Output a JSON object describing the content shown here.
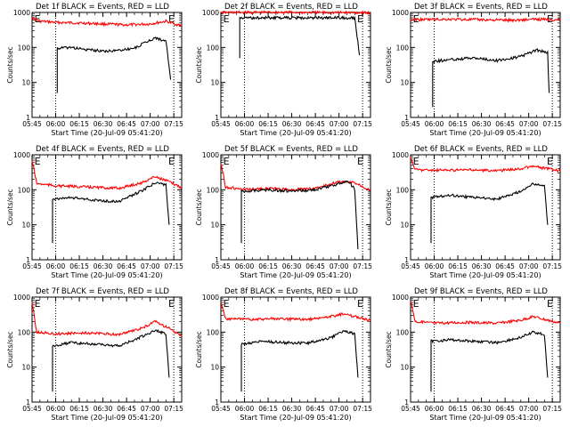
{
  "chart_data": [
    {
      "type": "line",
      "title": "Det 1f BLACK = Events, RED = LLD",
      "ylabel": "Counts/sec",
      "xlabel": "Start Time (20-Jul-09 05:41:20)",
      "y_scale": "log",
      "ylim": [
        1,
        1000
      ],
      "y_tick_labels": [
        "1",
        "10",
        "100",
        "1000"
      ],
      "x_tick_labels": [
        "05:45",
        "06:00",
        "06:15",
        "06:30",
        "06:45",
        "07:00",
        "07:15"
      ],
      "xlim_minutes": [
        -15,
        80
      ],
      "vlines_minutes": [
        0,
        75
      ],
      "markers": [
        "E",
        "E"
      ],
      "series": [
        {
          "color": "#ff0000",
          "points": [
            [
              -15,
              700
            ],
            [
              -10,
              560
            ],
            [
              0,
              520
            ],
            [
              15,
              500
            ],
            [
              30,
              470
            ],
            [
              45,
              440
            ],
            [
              60,
              470
            ],
            [
              70,
              560
            ],
            [
              80,
              410
            ]
          ]
        },
        {
          "color": "#000000",
          "points": [
            [
              1,
              5
            ],
            [
              1,
              95
            ],
            [
              10,
              100
            ],
            [
              20,
              85
            ],
            [
              35,
              78
            ],
            [
              50,
              95
            ],
            [
              63,
              190
            ],
            [
              70,
              150
            ],
            [
              73,
              12
            ]
          ]
        }
      ]
    },
    {
      "type": "line",
      "title": "Det 2f BLACK = Events, RED = LLD",
      "ylabel": "Counts/sec",
      "xlabel": "Start Time (20-Jul-09 05:41:20)",
      "y_scale": "log",
      "ylim": [
        1,
        1000
      ],
      "y_tick_labels": [
        "1",
        "10",
        "100",
        "1000"
      ],
      "x_tick_labels": [
        "05:45",
        "06:00",
        "06:15",
        "06:30",
        "06:45",
        "07:00",
        "07:15"
      ],
      "xlim_minutes": [
        -15,
        80
      ],
      "vlines_minutes": [
        0,
        75
      ],
      "markers": [
        "E",
        "E"
      ],
      "series": [
        {
          "color": "#ff0000",
          "points": [
            [
              -15,
              1000
            ],
            [
              0,
              1000
            ],
            [
              20,
              1010
            ],
            [
              40,
              1000
            ],
            [
              60,
              990
            ],
            [
              75,
              1000
            ],
            [
              80,
              950
            ]
          ]
        },
        {
          "color": "#000000",
          "points": [
            [
              -3,
              50
            ],
            [
              -3,
              700
            ],
            [
              10,
              700
            ],
            [
              30,
              700
            ],
            [
              50,
              700
            ],
            [
              70,
              700
            ],
            [
              73,
              60
            ]
          ]
        }
      ]
    },
    {
      "type": "line",
      "title": "Det 3f BLACK = Events, RED = LLD",
      "ylabel": "Counts/sec",
      "xlabel": "Start Time (20-Jul-09 05:41:20)",
      "y_scale": "log",
      "ylim": [
        1,
        1000
      ],
      "y_tick_labels": [
        "1",
        "10",
        "100",
        "1000"
      ],
      "x_tick_labels": [
        "05:45",
        "06:00",
        "06:15",
        "06:30",
        "06:45",
        "07:00",
        "07:15"
      ],
      "xlim_minutes": [
        -15,
        80
      ],
      "vlines_minutes": [
        0,
        75
      ],
      "markers": [
        "E",
        "E"
      ],
      "series": [
        {
          "color": "#ff0000",
          "points": [
            [
              -15,
              620
            ],
            [
              10,
              640
            ],
            [
              30,
              620
            ],
            [
              50,
              600
            ],
            [
              65,
              640
            ],
            [
              80,
              620
            ]
          ]
        },
        {
          "color": "#000000",
          "points": [
            [
              -1,
              2
            ],
            [
              -1,
              40
            ],
            [
              10,
              45
            ],
            [
              25,
              50
            ],
            [
              40,
              42
            ],
            [
              55,
              55
            ],
            [
              65,
              85
            ],
            [
              72,
              70
            ],
            [
              73,
              5
            ]
          ]
        }
      ]
    },
    {
      "type": "line",
      "title": "Det 4f BLACK = Events, RED = LLD",
      "ylabel": "Counts/sec",
      "xlabel": "Start Time (20-Jul-09 05:41:20)",
      "y_scale": "log",
      "ylim": [
        1,
        1000
      ],
      "y_tick_labels": [
        "1",
        "10",
        "100",
        "1000"
      ],
      "x_tick_labels": [
        "05:45",
        "06:00",
        "06:15",
        "06:30",
        "06:45",
        "07:00",
        "07:15"
      ],
      "xlim_minutes": [
        -15,
        80
      ],
      "vlines_minutes": [
        0,
        75
      ],
      "markers": [
        "E",
        "E"
      ],
      "series": [
        {
          "color": "#ff0000",
          "points": [
            [
              -15,
              700
            ],
            [
              -12,
              150
            ],
            [
              0,
              130
            ],
            [
              20,
              120
            ],
            [
              40,
              110
            ],
            [
              55,
              160
            ],
            [
              63,
              240
            ],
            [
              72,
              170
            ],
            [
              80,
              115
            ]
          ]
        },
        {
          "color": "#000000",
          "points": [
            [
              -2,
              3
            ],
            [
              -2,
              55
            ],
            [
              10,
              60
            ],
            [
              25,
              50
            ],
            [
              40,
              45
            ],
            [
              55,
              95
            ],
            [
              63,
              160
            ],
            [
              70,
              140
            ],
            [
              72,
              10
            ]
          ]
        }
      ]
    },
    {
      "type": "line",
      "title": "Det 5f BLACK = Events, RED = LLD",
      "ylabel": "Counts/sec",
      "xlabel": "Start Time (20-Jul-09 05:41:20)",
      "y_scale": "log",
      "ylim": [
        1,
        1000
      ],
      "y_tick_labels": [
        "1",
        "10",
        "100",
        "1000"
      ],
      "x_tick_labels": [
        "05:45",
        "06:00",
        "06:15",
        "06:30",
        "06:45",
        "07:00",
        "07:15"
      ],
      "xlim_minutes": [
        -15,
        80
      ],
      "vlines_minutes": [
        0,
        75
      ],
      "markers": [
        "E",
        "E"
      ],
      "series": [
        {
          "color": "#ff0000",
          "points": [
            [
              -15,
              600
            ],
            [
              -12,
              120
            ],
            [
              0,
              100
            ],
            [
              15,
              110
            ],
            [
              30,
              100
            ],
            [
              45,
              110
            ],
            [
              60,
              170
            ],
            [
              70,
              160
            ],
            [
              80,
              100
            ]
          ]
        },
        {
          "color": "#000000",
          "points": [
            [
              -2,
              3
            ],
            [
              -2,
              90
            ],
            [
              15,
              100
            ],
            [
              30,
              90
            ],
            [
              45,
              100
            ],
            [
              60,
              150
            ],
            [
              66,
              180
            ],
            [
              70,
              100
            ],
            [
              72,
              2
            ]
          ]
        }
      ]
    },
    {
      "type": "line",
      "title": "Det 6f BLACK = Events, RED = LLD",
      "ylabel": "Counts/sec",
      "xlabel": "Start Time (20-Jul-09 05:41:20)",
      "y_scale": "log",
      "ylim": [
        1,
        1000
      ],
      "y_tick_labels": [
        "1",
        "10",
        "100",
        "1000"
      ],
      "x_tick_labels": [
        "05:45",
        "06:00",
        "06:15",
        "06:30",
        "06:45",
        "07:00",
        "07:15"
      ],
      "xlim_minutes": [
        -15,
        80
      ],
      "vlines_minutes": [
        0,
        75
      ],
      "markers": [
        "E",
        "E"
      ],
      "series": [
        {
          "color": "#ff0000",
          "points": [
            [
              -15,
              800
            ],
            [
              -12,
              380
            ],
            [
              0,
              360
            ],
            [
              20,
              370
            ],
            [
              40,
              350
            ],
            [
              55,
              400
            ],
            [
              63,
              470
            ],
            [
              72,
              400
            ],
            [
              80,
              340
            ]
          ]
        },
        {
          "color": "#000000",
          "points": [
            [
              -2,
              3
            ],
            [
              -2,
              60
            ],
            [
              10,
              70
            ],
            [
              25,
              60
            ],
            [
              40,
              55
            ],
            [
              55,
              90
            ],
            [
              63,
              150
            ],
            [
              70,
              130
            ],
            [
              72,
              10
            ]
          ]
        }
      ]
    },
    {
      "type": "line",
      "title": "Det 7f BLACK = Events, RED = LLD",
      "ylabel": "Counts/sec",
      "xlabel": "Start Time (20-Jul-09 05:41:20)",
      "y_scale": "log",
      "ylim": [
        1,
        1000
      ],
      "y_tick_labels": [
        "1",
        "10",
        "100",
        "1000"
      ],
      "x_tick_labels": [
        "05:45",
        "06:00",
        "06:15",
        "06:30",
        "06:45",
        "07:00",
        "07:15"
      ],
      "xlim_minutes": [
        -15,
        80
      ],
      "vlines_minutes": [
        0,
        75
      ],
      "markers": [
        "E",
        "E"
      ],
      "series": [
        {
          "color": "#ff0000",
          "points": [
            [
              -15,
              700
            ],
            [
              -12,
              100
            ],
            [
              0,
              90
            ],
            [
              20,
              95
            ],
            [
              40,
              85
            ],
            [
              55,
              130
            ],
            [
              63,
              200
            ],
            [
              72,
              130
            ],
            [
              80,
              75
            ]
          ]
        },
        {
          "color": "#000000",
          "points": [
            [
              -2,
              2
            ],
            [
              -2,
              40
            ],
            [
              10,
              50
            ],
            [
              25,
              45
            ],
            [
              40,
              40
            ],
            [
              55,
              75
            ],
            [
              63,
              110
            ],
            [
              70,
              90
            ],
            [
              72,
              5
            ]
          ]
        }
      ]
    },
    {
      "type": "line",
      "title": "Det 8f BLACK = Events, RED = LLD",
      "ylabel": "Counts/sec",
      "xlabel": "Start Time (20-Jul-09 05:41:20)",
      "y_scale": "log",
      "ylim": [
        1,
        1000
      ],
      "y_tick_labels": [
        "1",
        "10",
        "100",
        "1000"
      ],
      "x_tick_labels": [
        "05:45",
        "06:00",
        "06:15",
        "06:30",
        "06:45",
        "07:00",
        "07:15"
      ],
      "xlim_minutes": [
        -15,
        80
      ],
      "vlines_minutes": [
        0,
        75
      ],
      "markers": [
        "E",
        "E"
      ],
      "series": [
        {
          "color": "#ff0000",
          "points": [
            [
              -15,
              700
            ],
            [
              -12,
              240
            ],
            [
              0,
              230
            ],
            [
              20,
              240
            ],
            [
              40,
              230
            ],
            [
              55,
              280
            ],
            [
              63,
              330
            ],
            [
              72,
              270
            ],
            [
              80,
              210
            ]
          ]
        },
        {
          "color": "#000000",
          "points": [
            [
              -2,
              2
            ],
            [
              -2,
              45
            ],
            [
              10,
              55
            ],
            [
              25,
              50
            ],
            [
              40,
              48
            ],
            [
              55,
              70
            ],
            [
              63,
              110
            ],
            [
              70,
              90
            ],
            [
              72,
              5
            ]
          ]
        }
      ]
    },
    {
      "type": "line",
      "title": "Det 9f BLACK = Events, RED = LLD",
      "ylabel": "Counts/sec",
      "xlabel": "Start Time (20-Jul-09 05:41:20)",
      "y_scale": "log",
      "ylim": [
        1,
        1000
      ],
      "y_tick_labels": [
        "1",
        "10",
        "100",
        "1000"
      ],
      "x_tick_labels": [
        "05:45",
        "06:00",
        "06:15",
        "06:30",
        "06:45",
        "07:00",
        "07:15"
      ],
      "xlim_minutes": [
        -15,
        80
      ],
      "vlines_minutes": [
        0,
        75
      ],
      "markers": [
        "E",
        "E"
      ],
      "series": [
        {
          "color": "#ff0000",
          "points": [
            [
              -15,
              800
            ],
            [
              -12,
              200
            ],
            [
              0,
              180
            ],
            [
              20,
              190
            ],
            [
              40,
              180
            ],
            [
              55,
              220
            ],
            [
              63,
              280
            ],
            [
              72,
              220
            ],
            [
              80,
              180
            ]
          ]
        },
        {
          "color": "#000000",
          "points": [
            [
              -2,
              2
            ],
            [
              -2,
              55
            ],
            [
              10,
              60
            ],
            [
              25,
              55
            ],
            [
              40,
              50
            ],
            [
              55,
              70
            ],
            [
              63,
              100
            ],
            [
              70,
              85
            ],
            [
              72,
              5
            ]
          ]
        }
      ]
    }
  ]
}
